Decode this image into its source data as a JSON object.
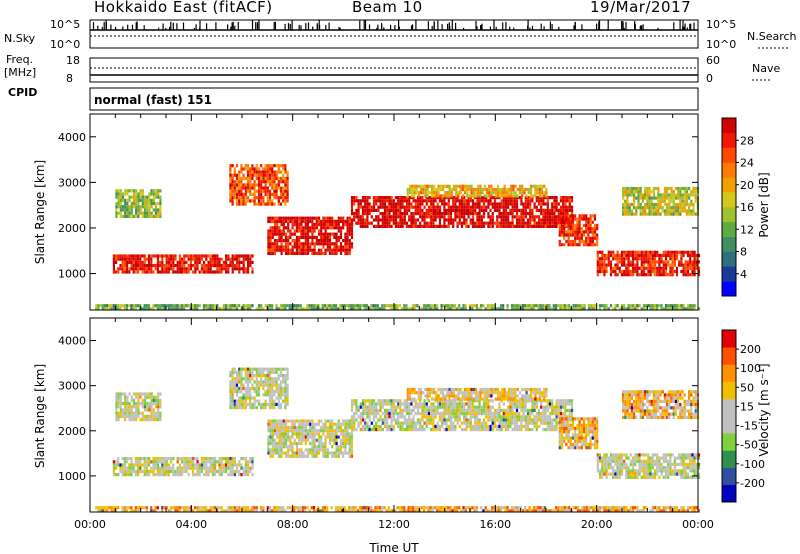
{
  "header": {
    "title": "Hokkaido East (fitACF)",
    "beam": "Beam 10",
    "date": "19/Mar/2017"
  },
  "strip": {
    "nsky_label": "N.Sky",
    "nsky_ticks": [
      "10^5",
      "10^0"
    ],
    "nsearch_label": "N.Search",
    "nsearch_ticks": [
      "10^5",
      "10^0"
    ],
    "freq_label": "Freq.",
    "freq_unit": "[MHz]",
    "freq_ticks": [
      "18",
      "8"
    ],
    "nave_label": "Nave",
    "nave_ticks": [
      "60",
      "0"
    ],
    "cpid_label": "CPID",
    "cpid_value": "normal (fast) 151"
  },
  "chart_data": [
    {
      "type": "heatmap",
      "name": "power",
      "ylabel": "Slant Range [km]",
      "yticks": [
        1000,
        2000,
        3000,
        4000
      ],
      "ylim": [
        200,
        4500
      ],
      "xlim": [
        0,
        24
      ],
      "colorbar": {
        "label": "Power [dB]",
        "ticks": [
          "28",
          "24",
          "20",
          "16",
          "12",
          "8",
          "4"
        ],
        "colors": [
          "#0000ff",
          "#1a3a9a",
          "#2f6f7f",
          "#3f8f5f",
          "#5faa3f",
          "#9fc02f",
          "#d4c81a",
          "#f0a000",
          "#ff7a00",
          "#ff4a00",
          "#f01800",
          "#d00000"
        ]
      },
      "bands": [
        {
          "x0": 0.9,
          "x1": 6.4,
          "y0": 1000,
          "y1": 1420,
          "level": 0.92
        },
        {
          "x0": 1.0,
          "x1": 2.8,
          "y0": 2250,
          "y1": 2850,
          "level": 0.45
        },
        {
          "x0": 5.5,
          "x1": 7.8,
          "y0": 2500,
          "y1": 3400,
          "level": 0.8
        },
        {
          "x0": 7.0,
          "x1": 10.3,
          "y0": 1450,
          "y1": 2250,
          "level": 0.95
        },
        {
          "x0": 10.3,
          "x1": 19.0,
          "y0": 2050,
          "y1": 2700,
          "level": 0.98
        },
        {
          "x0": 12.5,
          "x1": 18.0,
          "y0": 2700,
          "y1": 2950,
          "level": 0.6
        },
        {
          "x0": 18.5,
          "x1": 20.0,
          "y0": 1600,
          "y1": 2300,
          "level": 0.85
        },
        {
          "x0": 20.0,
          "x1": 24.0,
          "y0": 1000,
          "y1": 1500,
          "level": 0.9
        },
        {
          "x0": 21.0,
          "x1": 24.0,
          "y0": 2300,
          "y1": 2900,
          "level": 0.5
        },
        {
          "x0": 0.2,
          "x1": 24.0,
          "y0": 220,
          "y1": 330,
          "level": 0.4
        }
      ]
    },
    {
      "type": "heatmap",
      "name": "velocity",
      "ylabel": "Slant Range [km]",
      "xlabel": "Time UT",
      "xticks": [
        "00:00",
        "04:00",
        "08:00",
        "12:00",
        "16:00",
        "20:00",
        "00:00"
      ],
      "yticks": [
        1000,
        2000,
        3000,
        4000
      ],
      "ylim": [
        200,
        4500
      ],
      "xlim": [
        0,
        24
      ],
      "colorbar": {
        "label": "Velocity [m s⁻¹]",
        "ticks": [
          "200",
          "100",
          "50",
          "15",
          "-15",
          "-50",
          "-100",
          "-200"
        ],
        "colors": [
          "#0000c0",
          "#2f4fa0",
          "#2f8f4f",
          "#7fcf3f",
          "#c0c0c0",
          "#c0c0c0",
          "#f0c000",
          "#ff9000",
          "#ff5000",
          "#e00000"
        ]
      },
      "bands": [
        {
          "x0": 0.9,
          "x1": 6.4,
          "y0": 1000,
          "y1": 1420,
          "level": 0.5
        },
        {
          "x0": 1.0,
          "x1": 2.8,
          "y0": 2250,
          "y1": 2850,
          "level": 0.5
        },
        {
          "x0": 5.5,
          "x1": 7.8,
          "y0": 2500,
          "y1": 3400,
          "level": 0.5
        },
        {
          "x0": 7.0,
          "x1": 10.3,
          "y0": 1450,
          "y1": 2250,
          "level": 0.5
        },
        {
          "x0": 10.3,
          "x1": 19.0,
          "y0": 2050,
          "y1": 2700,
          "level": 0.5
        },
        {
          "x0": 12.5,
          "x1": 18.0,
          "y0": 2700,
          "y1": 2950,
          "level": 0.62
        },
        {
          "x0": 18.5,
          "x1": 20.0,
          "y0": 1600,
          "y1": 2300,
          "level": 0.68
        },
        {
          "x0": 20.0,
          "x1": 24.0,
          "y0": 1000,
          "y1": 1500,
          "level": 0.5
        },
        {
          "x0": 21.0,
          "x1": 24.0,
          "y0": 2300,
          "y1": 2900,
          "level": 0.66
        },
        {
          "x0": 0.2,
          "x1": 24.0,
          "y0": 220,
          "y1": 330,
          "level": 0.7
        }
      ]
    }
  ]
}
